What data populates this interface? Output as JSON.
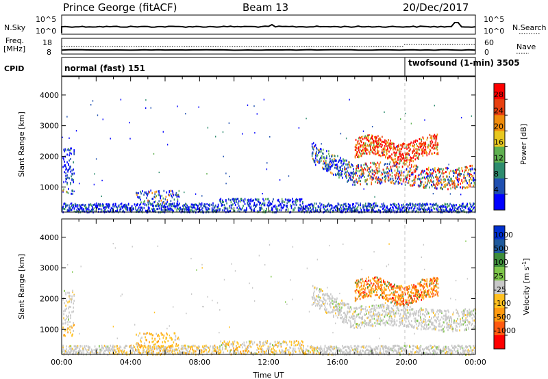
{
  "header": {
    "station": "Prince George (fitACF)",
    "beam": "Beam 13",
    "date": "20/Dec/2017"
  },
  "top_panels": {
    "nsky_label": "N.Sky",
    "nsearch_label": "N.Search",
    "left_ticks": [
      "10^5",
      "10^0"
    ],
    "right_ticks": [
      "10^5",
      "10^0"
    ],
    "freq_label": "Freq.",
    "freq_unit": "[MHz]",
    "freq_ticks": [
      "18",
      "8"
    ],
    "nave_label": "Nave",
    "nave_ticks": [
      "60",
      "0"
    ],
    "cpid_label": "CPID",
    "cpid_modes": [
      {
        "name": "normal (fast) 151",
        "start_hour": 0
      },
      {
        "name": "twofsound (1-min) 3505",
        "start_hour": 20
      }
    ]
  },
  "chart_data": [
    {
      "type": "heatmap",
      "xlabel": "",
      "ylabel": "Slant Range [km]",
      "xlim": [
        0,
        24
      ],
      "ylim": [
        180,
        4600
      ],
      "yticks": [
        "1000",
        "2000",
        "3000",
        "4000"
      ],
      "colorbar": {
        "label": "Power [dB]",
        "ticks": [
          "4",
          "8",
          "12",
          "16",
          "20",
          "24",
          "28"
        ],
        "colors": [
          "#0000ff",
          "#1f4fb0",
          "#2e8c6e",
          "#5fb050",
          "#e8c820",
          "#f08c0c",
          "#e84010",
          "#ff0000"
        ]
      },
      "regions": [
        {
          "x": [
            0.1,
            0.7
          ],
          "y": [
            800,
            2300
          ],
          "level": "mixed-low"
        },
        {
          "x": [
            0.0,
            24.0
          ],
          "y": [
            180,
            600
          ],
          "level": "ground-scatter-band"
        },
        {
          "x": [
            4.3,
            6.8
          ],
          "y": [
            400,
            950
          ],
          "level": "mixed"
        },
        {
          "x": [
            14.5,
            24.0
          ],
          "y": [
            900,
            2000
          ],
          "level": "arc-low-mid"
        },
        {
          "x": [
            17.0,
            21.8
          ],
          "y": [
            1900,
            2700
          ],
          "level": "high-peak"
        }
      ]
    },
    {
      "type": "heatmap",
      "xlabel": "Time UT",
      "ylabel": "Slant Range [km]",
      "xlim": [
        0,
        24
      ],
      "ylim": [
        180,
        4600
      ],
      "xticks": [
        "00:00",
        "04:00",
        "08:00",
        "12:00",
        "16:00",
        "20:00",
        "00:00"
      ],
      "yticks": [
        "1000",
        "2000",
        "3000",
        "4000"
      ],
      "colorbar": {
        "label": "Velocity [m s",
        "label_exponent": "-1",
        "label_close": "]",
        "ticks": [
          "1000",
          "500",
          "100",
          "25",
          "-25",
          "-100",
          "-500",
          "-1000"
        ],
        "colors": [
          "#0030d0",
          "#1f5a9c",
          "#3e8c3a",
          "#7ec64a",
          "#c8c8c8",
          "#ffc020",
          "#ff9a10",
          "#ff5a10",
          "#ff0000"
        ]
      },
      "regions": [
        {
          "x": [
            0.1,
            0.7
          ],
          "y": [
            800,
            2300
          ],
          "level": "ground-grey-and-orange"
        },
        {
          "x": [
            0.0,
            24.0
          ],
          "y": [
            180,
            600
          ],
          "level": "ground-grey-orange"
        },
        {
          "x": [
            14.5,
            24.0
          ],
          "y": [
            900,
            2000
          ],
          "level": "ground-grey"
        },
        {
          "x": [
            17.0,
            21.8
          ],
          "y": [
            1900,
            2700
          ],
          "level": "negative-orange"
        }
      ]
    }
  ]
}
